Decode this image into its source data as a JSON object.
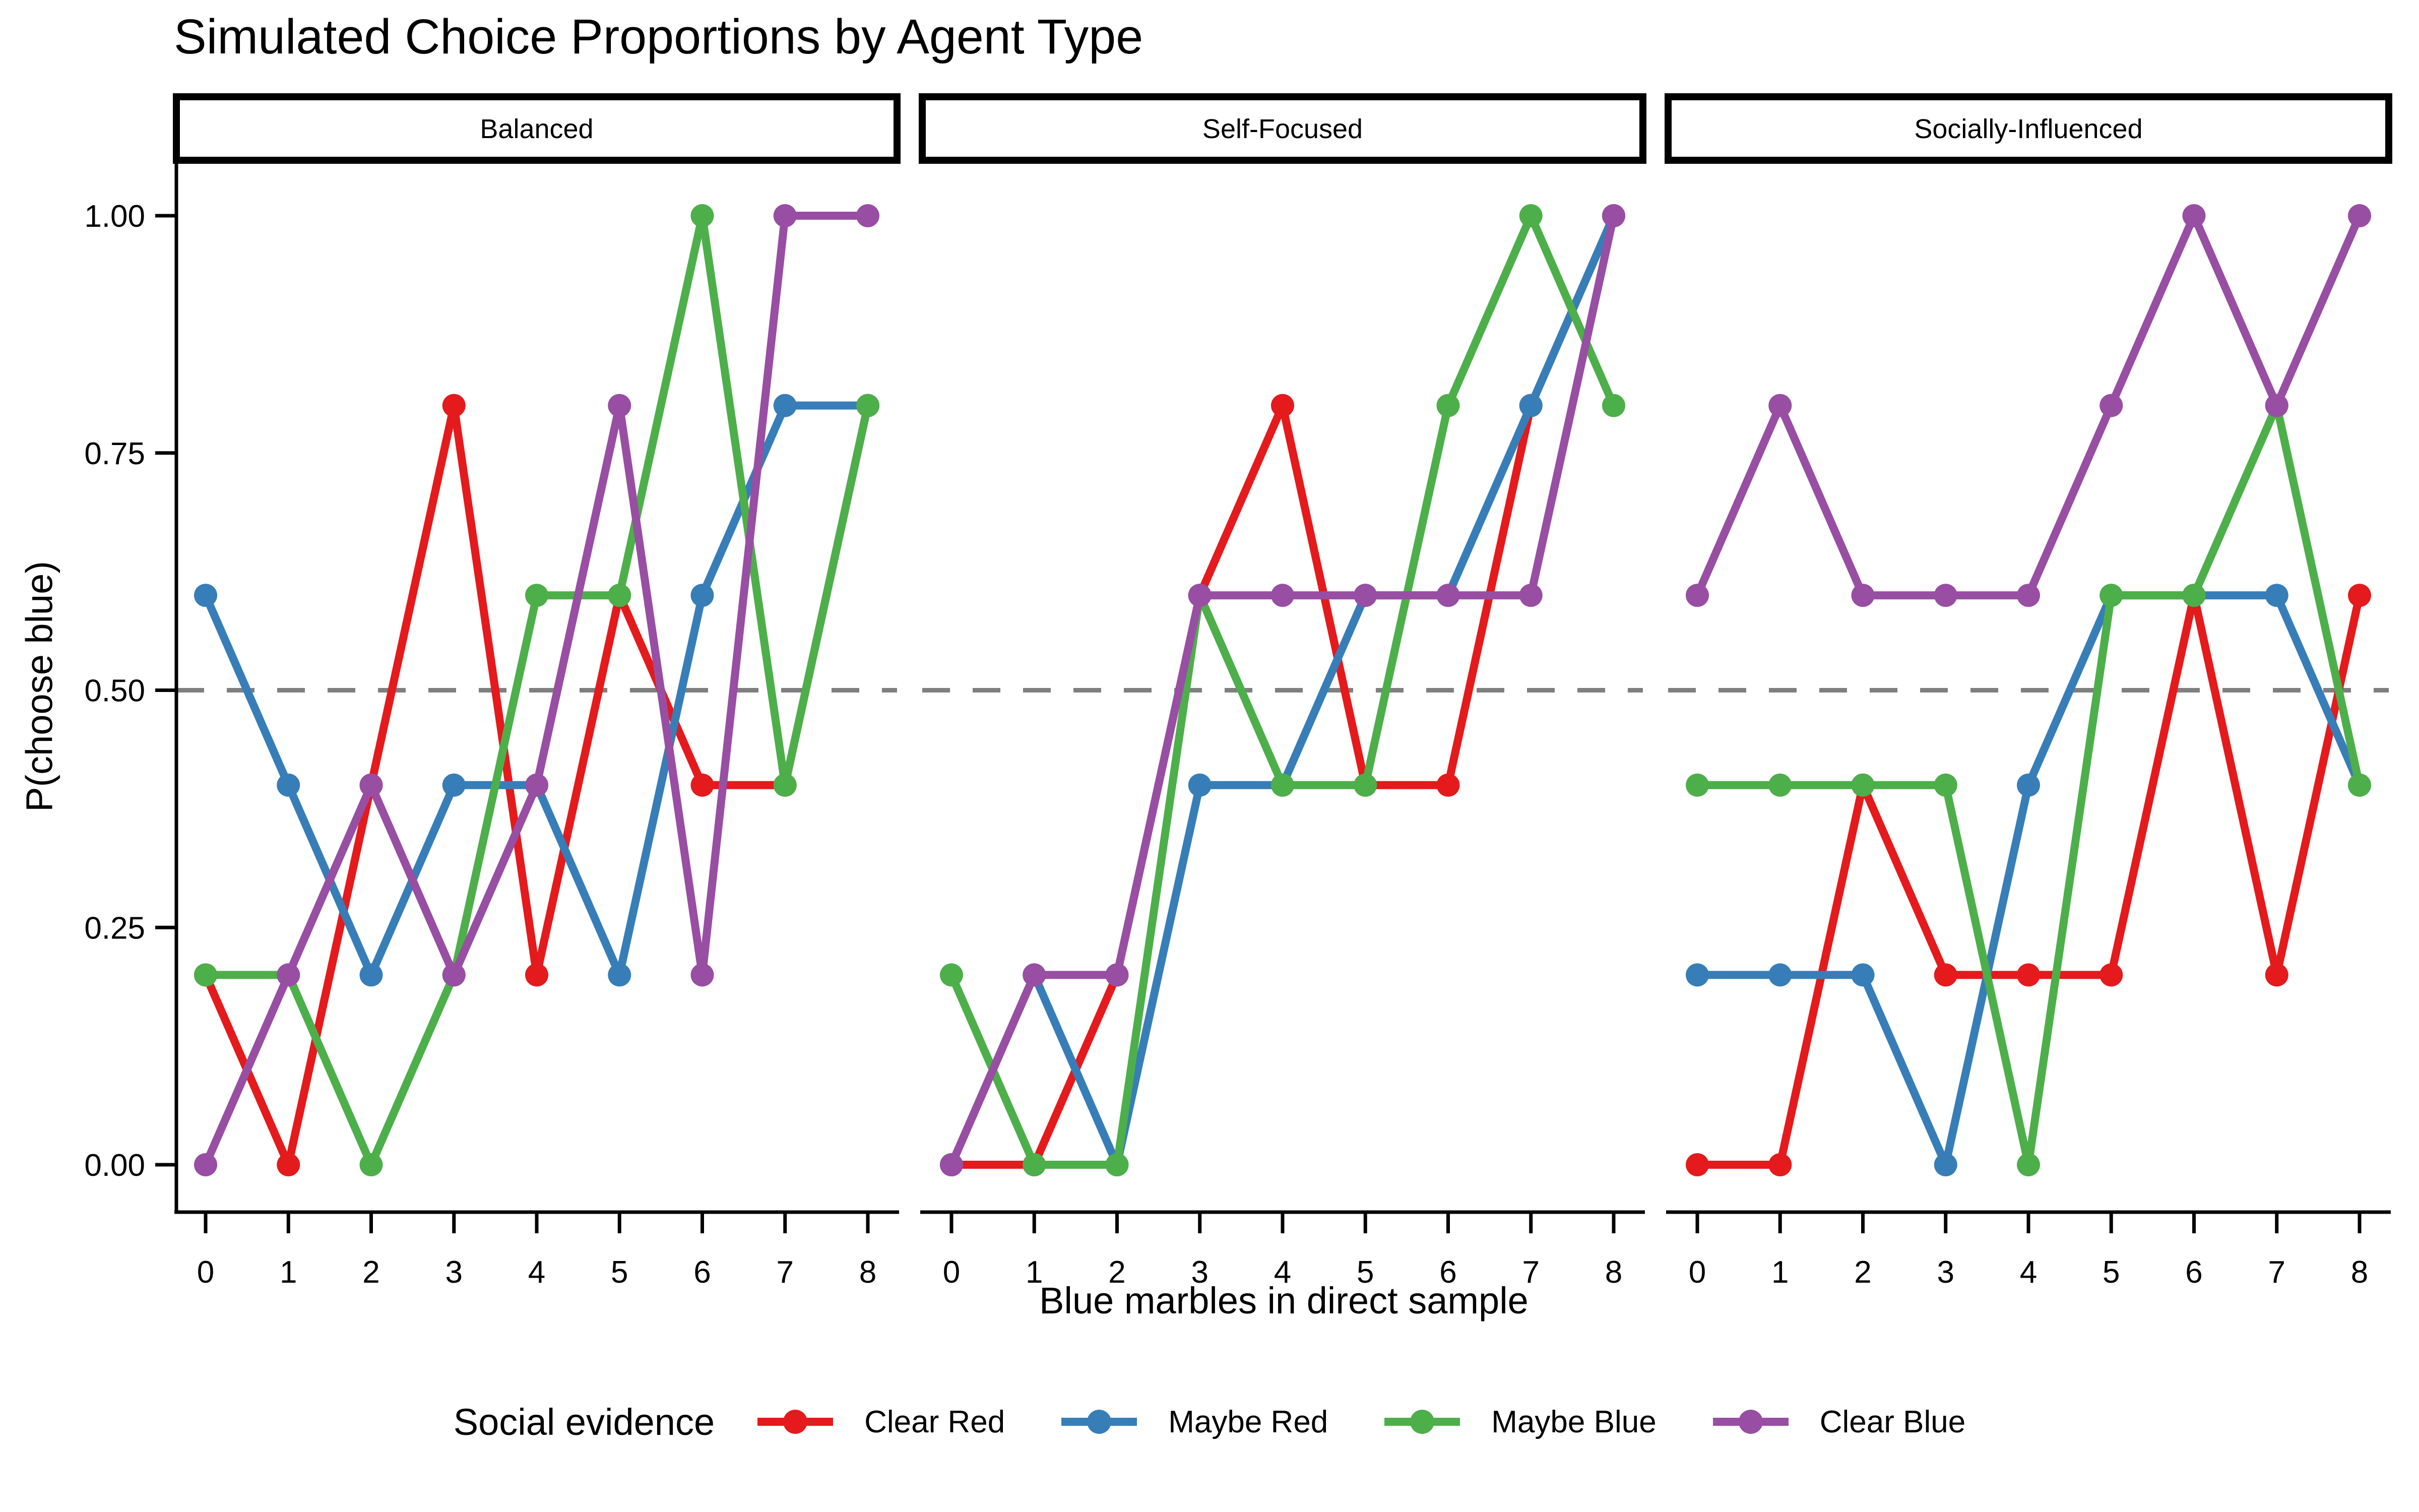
{
  "title": "Simulated Choice Proportions by Agent Type",
  "axes": {
    "x_label": "Blue marbles in direct sample",
    "y_label": "P(choose blue)",
    "x_tick_labels": [
      "0",
      "1",
      "2",
      "3",
      "4",
      "5",
      "6",
      "7",
      "8"
    ],
    "y_tick_labels": [
      "0.00",
      "0.25",
      "0.50",
      "0.75",
      "1.00"
    ],
    "y_tick_values": [
      0,
      0.25,
      0.5,
      0.75,
      1.0
    ]
  },
  "legend": {
    "title": "Social evidence",
    "entries": [
      {
        "label": "Clear Red",
        "color": "#E41A1C"
      },
      {
        "label": "Maybe Red",
        "color": "#377EB8"
      },
      {
        "label": "Maybe Blue",
        "color": "#4DAF4A"
      },
      {
        "label": "Clear Blue",
        "color": "#984EA3"
      }
    ]
  },
  "reference_line": {
    "value": 0.5,
    "color": "#7F7F7F",
    "style": "dashed"
  },
  "chart_data": {
    "type": "line",
    "title": "Simulated Choice Proportions by Agent Type",
    "xlabel": "Blue marbles in direct sample",
    "ylabel": "P(choose blue)",
    "x": [
      0,
      1,
      2,
      3,
      4,
      5,
      6,
      7,
      8
    ],
    "ylim": [
      0,
      1
    ],
    "grid": false,
    "legend_position": "bottom",
    "facets": [
      {
        "label": "Balanced",
        "series": [
          {
            "name": "Clear Red",
            "color": "#E41A1C",
            "values": [
              0.2,
              0.0,
              0.4,
              0.8,
              0.2,
              0.6,
              0.4,
              0.4,
              0.8
            ]
          },
          {
            "name": "Maybe Red",
            "color": "#377EB8",
            "values": [
              0.6,
              0.4,
              0.2,
              0.4,
              0.4,
              0.2,
              0.6,
              0.8,
              0.8
            ]
          },
          {
            "name": "Maybe Blue",
            "color": "#4DAF4A",
            "values": [
              0.2,
              0.2,
              0.0,
              0.2,
              0.6,
              0.6,
              1.0,
              0.4,
              0.8
            ]
          },
          {
            "name": "Clear Blue",
            "color": "#984EA3",
            "values": [
              0.0,
              0.2,
              0.4,
              0.2,
              0.4,
              0.8,
              0.2,
              1.0,
              1.0
            ]
          }
        ]
      },
      {
        "label": "Self-Focused",
        "series": [
          {
            "name": "Clear Red",
            "color": "#E41A1C",
            "values": [
              0.0,
              0.0,
              0.2,
              0.6,
              0.8,
              0.4,
              0.4,
              0.8,
              1.0
            ]
          },
          {
            "name": "Maybe Red",
            "color": "#377EB8",
            "values": [
              0.0,
              0.2,
              0.0,
              0.4,
              0.4,
              0.6,
              0.6,
              0.8,
              1.0
            ]
          },
          {
            "name": "Maybe Blue",
            "color": "#4DAF4A",
            "values": [
              0.2,
              0.0,
              0.0,
              0.6,
              0.4,
              0.4,
              0.8,
              1.0,
              0.8
            ]
          },
          {
            "name": "Clear Blue",
            "color": "#984EA3",
            "values": [
              0.0,
              0.2,
              0.2,
              0.6,
              0.6,
              0.6,
              0.6,
              0.6,
              1.0
            ]
          }
        ]
      },
      {
        "label": "Socially-Influenced",
        "series": [
          {
            "name": "Clear Red",
            "color": "#E41A1C",
            "values": [
              0.0,
              0.0,
              0.4,
              0.2,
              0.2,
              0.2,
              0.6,
              0.2,
              0.6
            ]
          },
          {
            "name": "Maybe Red",
            "color": "#377EB8",
            "values": [
              0.2,
              0.2,
              0.2,
              0.0,
              0.4,
              0.6,
              0.6,
              0.6,
              0.4
            ]
          },
          {
            "name": "Maybe Blue",
            "color": "#4DAF4A",
            "values": [
              0.4,
              0.4,
              0.4,
              0.4,
              0.0,
              0.6,
              0.6,
              0.8,
              0.4
            ]
          },
          {
            "name": "Clear Blue",
            "color": "#984EA3",
            "values": [
              0.6,
              0.8,
              0.6,
              0.6,
              0.6,
              0.8,
              1.0,
              0.8,
              1.0
            ]
          }
        ]
      }
    ]
  }
}
